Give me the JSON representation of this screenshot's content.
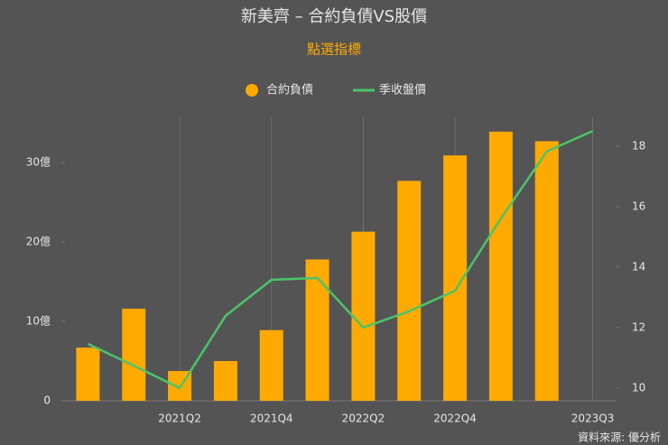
{
  "chart_data": {
    "type": "bar-line",
    "title": "新美齊 – 合約負債VS股價",
    "subtitle": "點選指標",
    "source": "資料來源: 優分析",
    "categories": [
      null,
      null,
      "2021Q2",
      null,
      "2021Q4",
      null,
      "2022Q2",
      null,
      "2022Q4",
      null,
      null,
      "2023Q3"
    ],
    "series": [
      {
        "name": "合約負債",
        "type": "bar",
        "color": "#ffaa00",
        "axis": "y",
        "values": [
          6.7,
          11.6,
          3.75,
          5.0,
          8.9,
          17.8,
          21.3,
          27.7,
          30.9,
          33.9,
          32.7,
          null
        ]
      },
      {
        "name": "季收盤價",
        "type": "line",
        "color": "#4cc46a",
        "axis": "y2",
        "values": [
          11.46,
          10.74,
          10.0,
          12.39,
          13.58,
          13.64,
          12.0,
          12.54,
          13.22,
          15.61,
          17.82,
          18.5
        ]
      }
    ],
    "ylim": [
      0,
      35.7
    ],
    "yticks": [
      0,
      {
        "value": 10,
        "label": "10億"
      },
      {
        "value": 20,
        "label": "20億"
      },
      {
        "value": 30,
        "label": "30億"
      }
    ],
    "y2lim": [
      9.58,
      18.95
    ],
    "y2ticks": [
      10,
      12,
      14,
      16,
      18
    ],
    "xgrid": true
  }
}
